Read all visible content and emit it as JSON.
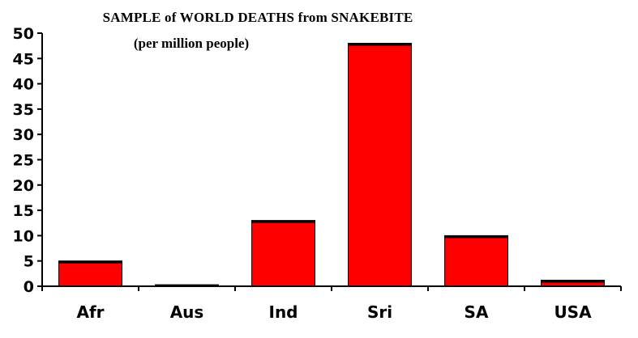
{
  "chart_data": {
    "type": "bar",
    "title": "SAMPLE of WORLD DEATHS from SNAKEBITE",
    "subtitle": "(per million people)",
    "xlabel": "",
    "ylabel": "",
    "categories": [
      "Afr",
      "Aus",
      "Ind",
      "Sri",
      "SA",
      "USA"
    ],
    "values": [
      5,
      0.3,
      13,
      48,
      10,
      1.2
    ],
    "ylim": [
      0,
      50
    ],
    "yticks": [
      0,
      5,
      10,
      15,
      20,
      25,
      30,
      35,
      40,
      45,
      50
    ],
    "grid": false,
    "legend": "none",
    "colors": {
      "bar_fill": "#ff0000",
      "bar_outline": "#000000",
      "axis": "#000000",
      "background": "#ffffff"
    }
  }
}
